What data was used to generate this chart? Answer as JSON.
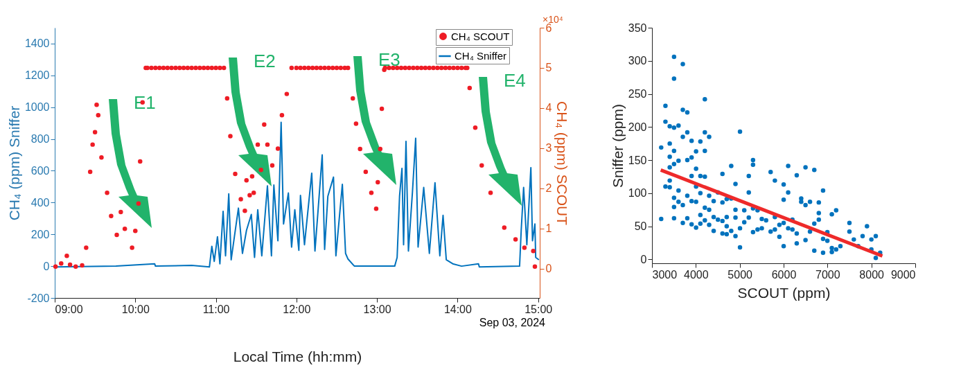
{
  "chart_data": [
    {
      "type": "line",
      "xlabel": "Local Time (hh:mm)",
      "ylabel": "CH₄ (ppm) Sniffer",
      "y2label": "CH₄ (ppm) SCOUT",
      "xlim": [
        9,
        15.02
      ],
      "xticks": [
        {
          "value": 9,
          "label": "09:00"
        },
        {
          "value": 10,
          "label": "10:00"
        },
        {
          "value": 11,
          "label": "11:00"
        },
        {
          "value": 12,
          "label": "12:00"
        },
        {
          "value": 13,
          "label": "13:00"
        },
        {
          "value": 14,
          "label": "14:00"
        },
        {
          "value": 15,
          "label": "15:00"
        }
      ],
      "ylim": [
        -200,
        1500
      ],
      "yticks": [
        -200,
        0,
        200,
        400,
        600,
        800,
        1000,
        1200,
        1400
      ],
      "y2lim": [
        -0.73,
        6
      ],
      "y2ticks": [
        0,
        1,
        2,
        3,
        4,
        5,
        6
      ],
      "legend": "top right",
      "series": [
        {
          "name": "CH₄ SCOUT",
          "type": "scatter",
          "axis": "y2",
          "marker": "circle",
          "color": "#ee1c25",
          "x": [
            9.01,
            9.08,
            9.15,
            9.19,
            9.26,
            9.34,
            9.39,
            9.44,
            9.47,
            9.5,
            9.52,
            9.54,
            9.58,
            9.65,
            9.7,
            9.77,
            9.82,
            9.87,
            9.96,
            10.0,
            10.04,
            10.06,
            10.09,
            10.13,
            10.15,
            10.2,
            10.25,
            10.3,
            10.35,
            10.4,
            10.45,
            10.5,
            10.55,
            10.6,
            10.65,
            10.7,
            10.75,
            10.8,
            10.85,
            10.9,
            10.95,
            11.0,
            11.05,
            11.1,
            11.14,
            11.18,
            11.24,
            11.31,
            11.36,
            11.38,
            11.42,
            11.45,
            11.47,
            11.52,
            11.56,
            11.6,
            11.64,
            11.7,
            11.77,
            11.82,
            11.88,
            11.94,
            12.0,
            12.05,
            12.1,
            12.15,
            12.2,
            12.25,
            12.3,
            12.35,
            12.4,
            12.45,
            12.5,
            12.55,
            12.6,
            12.64,
            12.7,
            12.74,
            12.79,
            12.86,
            12.93,
            12.99,
            13.01,
            13.04,
            13.06,
            13.09,
            13.1,
            13.15,
            13.2,
            13.25,
            13.3,
            13.35,
            13.4,
            13.45,
            13.5,
            13.55,
            13.6,
            13.65,
            13.7,
            13.75,
            13.8,
            13.85,
            13.9,
            13.95,
            14.0,
            14.05,
            14.1,
            14.12,
            14.15,
            14.22,
            14.3,
            14.41,
            14.58,
            14.72,
            14.83,
            14.94,
            14.96
          ],
          "values": [
            0.05,
            0.13,
            0.32,
            0.1,
            0.05,
            0.08,
            0.52,
            2.41,
            3.09,
            3.4,
            4.08,
            3.82,
            2.77,
            1.89,
            1.31,
            0.84,
            1.41,
            0.99,
            0.52,
            0.94,
            1.62,
            2.67,
            4.14,
            5,
            5,
            5,
            5,
            5,
            5,
            5,
            5,
            5,
            5,
            5,
            5,
            5,
            5,
            5,
            5,
            5,
            5,
            5,
            5,
            5,
            4.24,
            3.3,
            2.36,
            1.73,
            1.44,
            2.2,
            1.83,
            2.3,
            1.89,
            3.09,
            2.46,
            3.59,
            3.09,
            2.57,
            2.99,
            3.82,
            4.35,
            5,
            5,
            5,
            5,
            5,
            5,
            5,
            5,
            5,
            5,
            5,
            5,
            5,
            5,
            5,
            4.24,
            3.61,
            2.98,
            2.41,
            1.89,
            1.49,
            2.15,
            2.98,
            3.98,
            4.95,
            5,
            5,
            5,
            5,
            5,
            5,
            5,
            5,
            5,
            5,
            5,
            5,
            5,
            5,
            5,
            5,
            5,
            5,
            5,
            5,
            5,
            5,
            4.5,
            3.51,
            2.57,
            1.89,
            1.02,
            0.73,
            0.52,
            0.44,
            0.05
          ]
        },
        {
          "name": "CH₄ Sniffer",
          "color": "#0072bd",
          "x": [
            9.01,
            9.76,
            10.24,
            10.25,
            10.7,
            10.92,
            10.95,
            10.98,
            11.02,
            11.05,
            11.09,
            11.12,
            11.16,
            11.19,
            11.23,
            11.28,
            11.33,
            11.38,
            11.44,
            11.48,
            11.52,
            11.57,
            11.64,
            11.69,
            11.72,
            11.77,
            11.81,
            11.84,
            11.9,
            11.94,
            11.98,
            12.03,
            12.05,
            12.1,
            12.19,
            12.23,
            12.27,
            12.32,
            12.35,
            12.39,
            12.46,
            12.49,
            12.57,
            12.61,
            12.64,
            12.72,
            13.22,
            13.25,
            13.28,
            13.31,
            13.33,
            13.36,
            13.39,
            13.44,
            13.48,
            13.51,
            13.58,
            13.65,
            13.72,
            13.78,
            13.82,
            13.86,
            13.94,
            14.05,
            14.26,
            14.27,
            14.77,
            14.79,
            14.82,
            14.86,
            14.91,
            14.93,
            14.96,
            14.97,
            15.01
          ],
          "values": [
            -5,
            0,
            15,
            0,
            5,
            -5,
            125,
            30,
            185,
            15,
            345,
            65,
            455,
            40,
            185,
            365,
            80,
            225,
            325,
            55,
            355,
            65,
            505,
            65,
            510,
            160,
            905,
            265,
            460,
            120,
            355,
            100,
            445,
            135,
            585,
            95,
            360,
            700,
            105,
            440,
            560,
            65,
            515,
            80,
            45,
            0,
            0,
            55,
            440,
            615,
            135,
            785,
            95,
            465,
            805,
            120,
            495,
            80,
            525,
            65,
            320,
            40,
            15,
            0,
            15,
            -5,
            0,
            225,
            495,
            135,
            620,
            160,
            265,
            55,
            40
          ]
        }
      ],
      "annotations": [
        "E1",
        "E2",
        "E3",
        "E4",
        "Sep 03, 2024",
        "×10⁴"
      ]
    },
    {
      "type": "scatter",
      "xlabel": "SCOUT (ppm)",
      "ylabel": "Sniffer (ppm)",
      "xlim": [
        3000,
        9000
      ],
      "xticks": [
        3000,
        4000,
        5000,
        6000,
        7000,
        8000,
        9000
      ],
      "ylim": [
        -6,
        350
      ],
      "yticks": [
        0,
        50,
        100,
        150,
        200,
        250,
        300,
        350
      ],
      "series": [
        {
          "marker": "circle",
          "color": "#0072bd",
          "x": [
            3210,
            3210,
            3307,
            3307,
            3307,
            3405,
            3405,
            3405,
            3405,
            3405,
            3405,
            3503,
            3503,
            3503,
            3503,
            3503,
            3503,
            3503,
            3503,
            3605,
            3605,
            3605,
            3605,
            3703,
            3703,
            3703,
            3703,
            3703,
            3805,
            3805,
            3805,
            3805,
            3805,
            3903,
            3903,
            3903,
            3903,
            3903,
            4005,
            4005,
            4005,
            4005,
            4005,
            4103,
            4103,
            4103,
            4103,
            4103,
            4205,
            4205,
            4205,
            4205,
            4205,
            4205,
            4303,
            4303,
            4303,
            4303,
            4406,
            4406,
            4406,
            4503,
            4503,
            4606,
            4606,
            4606,
            4606,
            4703,
            4703,
            4703,
            4703,
            4806,
            4806,
            4806,
            4903,
            4903,
            4903,
            4903,
            5006,
            5006,
            5006,
            5103,
            5103,
            5206,
            5206,
            5206,
            5303,
            5303,
            5303,
            5303,
            5406,
            5406,
            5503,
            5503,
            5601,
            5704,
            5704,
            5801,
            5801,
            5801,
            5904,
            5904,
            6001,
            6001,
            6001,
            6001,
            6104,
            6104,
            6104,
            6201,
            6201,
            6299,
            6299,
            6299,
            6401,
            6401,
            6499,
            6499,
            6499,
            6601,
            6601,
            6699,
            6699,
            6699,
            6802,
            6802,
            6802,
            6899,
            6899,
            6899,
            6997,
            6997,
            7099,
            7099,
            7099,
            7197,
            7197,
            7294,
            7500,
            7500,
            7600,
            7700,
            7800,
            7900,
            8000,
            8000,
            8100,
            8100,
            8200
          ],
          "values": [
            169,
            61,
            232,
            208,
            110,
            201,
            175,
            155,
            139,
            119,
            109,
            306,
            273,
            199,
            164,
            144,
            93,
            79,
            62,
            202,
            149,
            104,
            87,
            295,
            226,
            185,
            82,
            55,
            222,
            192,
            150,
            96,
            62,
            179,
            154,
            126,
            88,
            53,
            163,
            137,
            110,
            87,
            48,
            178,
            126,
            100,
            67,
            54,
            242,
            192,
            164,
            125,
            78,
            59,
            185,
            96,
            75,
            52,
            88,
            64,
            43,
            101,
            60,
            129,
            86,
            58,
            39,
            91,
            64,
            50,
            38,
            141,
            92,
            43,
            114,
            75,
            63,
            35,
            193,
            47,
            18,
            74,
            56,
            126,
            101,
            63,
            150,
            143,
            77,
            41,
            74,
            45,
            61,
            47,
            59,
            132,
            42,
            119,
            64,
            45,
            52,
            34,
            113,
            90,
            55,
            20,
            141,
            101,
            47,
            60,
            45,
            127,
            39,
            24,
            92,
            87,
            139,
            82,
            29,
            87,
            42,
            135,
            54,
            13,
            86,
            70,
            60,
            104,
            31,
            10,
            41,
            28,
            68,
            17,
            11,
            74,
            15,
            20,
            42,
            55,
            30,
            20,
            35,
            50,
            30,
            15,
            35,
            2,
            10
          ]
        },
        {
          "type": "line",
          "color": "#ee2a2a",
          "x": [
            3200,
            8250
          ],
          "values": [
            135,
            5
          ]
        }
      ]
    }
  ]
}
